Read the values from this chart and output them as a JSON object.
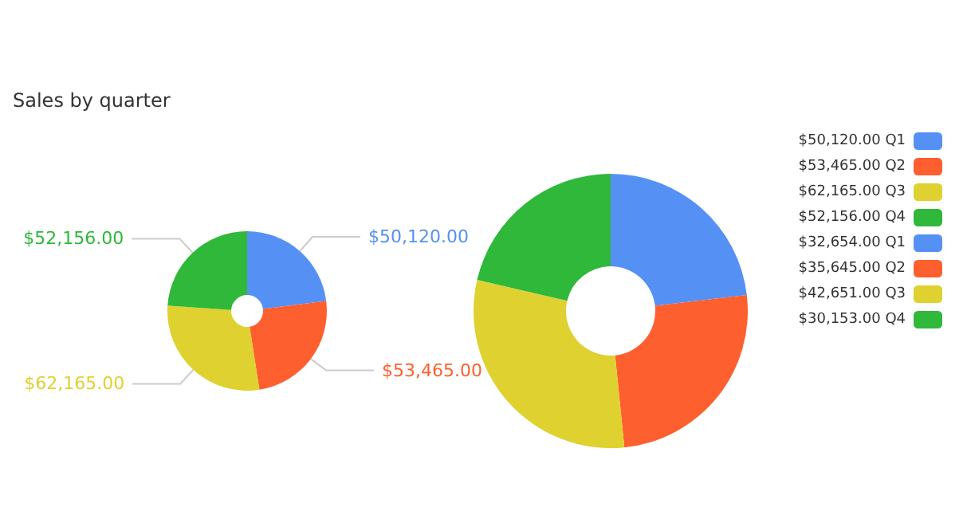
{
  "chart_data": {
    "type": "donut",
    "title": "Sales by quarter",
    "categories": [
      "Q1",
      "Q2",
      "Q3",
      "Q4"
    ],
    "legend": "right",
    "series": [
      {
        "colors": [
          "#5591f5",
          "#fe5f2f",
          "#dfd12f",
          "#2fb83a"
        ],
        "values": [
          50120,
          53465,
          62165,
          52156
        ],
        "value_labels": [
          "$50,120.00",
          "$53,465.00",
          "$62,165.00",
          "$52,156.00"
        ],
        "data_labels": true
      },
      {
        "colors": [
          "#5591f5",
          "#fe5f2f",
          "#dfd12f",
          "#2fb83a"
        ],
        "values": [
          32654,
          35645,
          42651,
          30153
        ],
        "value_labels": [
          "$32,654.00",
          "$35,645.00",
          "$42,651.00",
          "$30,153.00"
        ]
      }
    ]
  }
}
